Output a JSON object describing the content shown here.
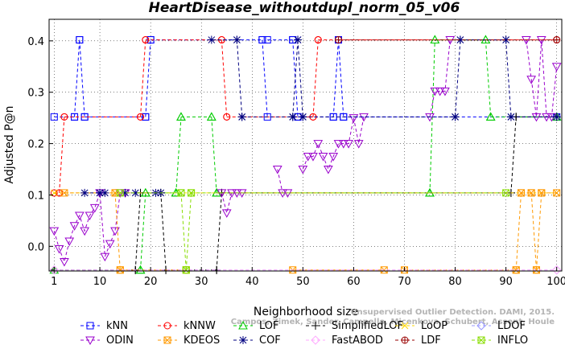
{
  "chart_data": {
    "type": "line",
    "title": "HeartDisease_withoutdupl_norm_05_v06",
    "xlabel": "Neighborhood size",
    "ylabel": "Adjusted P@n",
    "xlim": [
      0,
      101
    ],
    "ylim": [
      -0.048,
      0.442
    ],
    "xticks": [
      1,
      10,
      20,
      30,
      40,
      50,
      60,
      70,
      80,
      90,
      100
    ],
    "yticks": [
      0.0,
      0.1,
      0.2,
      0.3,
      0.4
    ],
    "ytick_labels": [
      "0.0",
      "0.1",
      "0.2",
      "0.3",
      "0.4"
    ],
    "grid": true,
    "legend_position": "bottom",
    "credit": [
      "Unsupervised Outlier Detection. DAMI, 2015.",
      "Campos, Zimek, Sander, Campello, Micenkova, Schubert, Assent, Houle"
    ],
    "series": [
      {
        "name": "kNN",
        "color": "#0000ff",
        "marker": "square",
        "segments": [
          [
            [
              1,
              0.252
            ],
            [
              5,
              0.252
            ]
          ],
          [
            [
              5,
              0.252
            ],
            [
              6,
              0.402
            ]
          ],
          [
            [
              6,
              0.402
            ],
            [
              7,
              0.252
            ]
          ],
          [
            [
              7,
              0.252
            ],
            [
              19,
              0.252
            ]
          ],
          [
            [
              19,
              0.252
            ],
            [
              20,
              0.402
            ]
          ],
          [
            [
              20,
              0.402
            ],
            [
              42,
              0.402
            ]
          ],
          [
            [
              42,
              0.402
            ],
            [
              43,
              0.252
            ]
          ],
          [
            [
              43,
              0.402
            ],
            [
              48,
              0.402
            ]
          ],
          [
            [
              48,
              0.402
            ],
            [
              49,
              0.252
            ]
          ],
          [
            [
              49,
              0.252
            ],
            [
              56,
              0.252
            ]
          ],
          [
            [
              56,
              0.252
            ],
            [
              57,
              0.402
            ]
          ],
          [
            [
              57,
              0.402
            ],
            [
              58,
              0.252
            ]
          ],
          [
            [
              58,
              0.252
            ],
            [
              100,
              0.252
            ]
          ]
        ]
      },
      {
        "name": "kNNW",
        "color": "#ff0000",
        "marker": "circle",
        "segments": [
          [
            [
              1,
              0.104
            ],
            [
              2,
              0.104
            ]
          ],
          [
            [
              2,
              0.104
            ],
            [
              3,
              0.252
            ]
          ],
          [
            [
              3,
              0.252
            ],
            [
              18,
              0.252
            ]
          ],
          [
            [
              18,
              0.252
            ],
            [
              19,
              0.402
            ]
          ],
          [
            [
              19,
              0.402
            ],
            [
              34,
              0.402
            ]
          ],
          [
            [
              34,
              0.402
            ],
            [
              35,
              0.252
            ]
          ],
          [
            [
              35,
              0.252
            ],
            [
              52,
              0.252
            ]
          ],
          [
            [
              52,
              0.252
            ],
            [
              53,
              0.402
            ]
          ],
          [
            [
              53,
              0.402
            ],
            [
              100,
              0.402
            ]
          ]
        ]
      },
      {
        "name": "LOF",
        "color": "#00cc00",
        "marker": "triangle-up",
        "segments": [
          [
            [
              1,
              -0.046
            ],
            [
              18,
              -0.046
            ]
          ],
          [
            [
              18,
              -0.046
            ],
            [
              19,
              0.104
            ]
          ],
          [
            [
              19,
              0.104
            ],
            [
              25,
              0.104
            ]
          ],
          [
            [
              25,
              0.104
            ],
            [
              26,
              0.252
            ]
          ],
          [
            [
              26,
              0.252
            ],
            [
              32,
              0.252
            ]
          ],
          [
            [
              32,
              0.252
            ],
            [
              33,
              0.104
            ]
          ],
          [
            [
              33,
              0.104
            ],
            [
              75,
              0.104
            ]
          ],
          [
            [
              75,
              0.104
            ],
            [
              76,
              0.402
            ]
          ],
          [
            [
              76,
              0.402
            ],
            [
              86,
              0.402
            ]
          ],
          [
            [
              86,
              0.402
            ],
            [
              87,
              0.252
            ]
          ],
          [
            [
              87,
              0.252
            ],
            [
              100,
              0.252
            ]
          ]
        ]
      },
      {
        "name": "SimplifiedLOF",
        "color": "#000000",
        "marker": "plus",
        "segments": [
          [
            [
              1,
              -0.046
            ],
            [
              17,
              -0.046
            ]
          ],
          [
            [
              17,
              -0.046
            ],
            [
              18,
              0.104
            ]
          ],
          [
            [
              18,
              0.104
            ],
            [
              22,
              0.104
            ]
          ],
          [
            [
              22,
              0.104
            ],
            [
              23,
              -0.046
            ]
          ],
          [
            [
              23,
              -0.046
            ],
            [
              33,
              -0.046
            ]
          ],
          [
            [
              33,
              -0.046
            ],
            [
              34,
              0.104
            ]
          ],
          [
            [
              34,
              0.104
            ],
            [
              91,
              0.104
            ]
          ],
          [
            [
              91,
              0.104
            ],
            [
              92,
              0.252
            ]
          ],
          [
            [
              92,
              0.252
            ],
            [
              100,
              0.252
            ]
          ]
        ]
      },
      {
        "name": "LoOP",
        "color": "#ffd700",
        "marker": "x",
        "segments": [
          [
            [
              1,
              0.104
            ],
            [
              100,
              0.104
            ]
          ]
        ]
      },
      {
        "name": "LDOF",
        "color": "#9999ff",
        "marker": "diamond",
        "segments": [
          [
            [
              1,
              -0.046
            ],
            [
              100,
              -0.046
            ]
          ]
        ]
      },
      {
        "name": "ODIN",
        "color": "#9900cc",
        "marker": "triangle-down",
        "segments": [
          [
            [
              1,
              0.03
            ],
            [
              2,
              -0.005
            ],
            [
              3,
              -0.03
            ],
            [
              4,
              0.01
            ],
            [
              5,
              0.04
            ],
            [
              6,
              0.06
            ],
            [
              7,
              0.03
            ],
            [
              8,
              0.06
            ],
            [
              9,
              0.075
            ],
            [
              10,
              0.104
            ],
            [
              11,
              -0.02
            ],
            [
              12,
              0.005
            ],
            [
              13,
              0.03
            ],
            [
              14,
              0.104
            ],
            [
              15,
              0.104
            ]
          ],
          [
            [
              34,
              0.104
            ],
            [
              35,
              0.065
            ],
            [
              36,
              0.104
            ],
            [
              37,
              0.104
            ],
            [
              38,
              0.104
            ]
          ],
          [
            [
              45,
              0.15
            ],
            [
              46,
              0.104
            ],
            [
              47,
              0.104
            ]
          ],
          [
            [
              50,
              0.15
            ],
            [
              51,
              0.175
            ],
            [
              52,
              0.175
            ],
            [
              53,
              0.2
            ],
            [
              54,
              0.175
            ],
            [
              55,
              0.15
            ],
            [
              56,
              0.175
            ],
            [
              57,
              0.2
            ],
            [
              58,
              0.2
            ],
            [
              59,
              0.2
            ],
            [
              60,
              0.25
            ],
            [
              61,
              0.2
            ],
            [
              62,
              0.252
            ]
          ],
          [
            [
              75,
              0.252
            ],
            [
              76,
              0.302
            ],
            [
              77,
              0.302
            ],
            [
              78,
              0.302
            ],
            [
              79,
              0.402
            ]
          ],
          [
            [
              94,
              0.402
            ],
            [
              95,
              0.325
            ],
            [
              96,
              0.252
            ],
            [
              97,
              0.402
            ],
            [
              98,
              0.252
            ],
            [
              99,
              0.252
            ],
            [
              100,
              0.35
            ]
          ]
        ]
      },
      {
        "name": "KDEOS",
        "color": "#ff9900",
        "marker": "square-x",
        "segments": [
          [
            [
              3,
              0.104
            ],
            [
              13,
              0.104
            ]
          ],
          [
            [
              13,
              0.104
            ],
            [
              14,
              -0.046
            ]
          ],
          [
            [
              14,
              -0.046
            ],
            [
              27,
              -0.046
            ]
          ],
          [
            [
              48,
              -0.046
            ],
            [
              66,
              -0.046
            ]
          ],
          [
            [
              70,
              -0.046
            ],
            [
              92,
              -0.046
            ]
          ],
          [
            [
              92,
              -0.046
            ],
            [
              93,
              0.104
            ]
          ],
          [
            [
              93,
              0.104
            ],
            [
              95,
              0.104
            ]
          ],
          [
            [
              95,
              0.104
            ],
            [
              96,
              -0.046
            ]
          ],
          [
            [
              96,
              -0.046
            ],
            [
              97,
              0.104
            ]
          ],
          [
            [
              97,
              0.104
            ],
            [
              100,
              0.104
            ]
          ]
        ]
      },
      {
        "name": "COF",
        "color": "#000080",
        "marker": "asterisk",
        "segments": [
          [
            [
              7,
              0.104
            ],
            [
              10,
              0.104
            ]
          ],
          [
            [
              10,
              0.104
            ],
            [
              11,
              0.104
            ]
          ],
          [
            [
              15,
              0.104
            ],
            [
              17,
              0.104
            ]
          ],
          [
            [
              21,
              0.104
            ],
            [
              22,
              0.104
            ]
          ],
          [
            [
              32,
              0.402
            ],
            [
              37,
              0.402
            ]
          ],
          [
            [
              37,
              0.402
            ],
            [
              38,
              0.252
            ]
          ],
          [
            [
              38,
              0.252
            ],
            [
              48,
              0.252
            ]
          ],
          [
            [
              48,
              0.252
            ],
            [
              49,
              0.402
            ]
          ],
          [
            [
              49,
              0.402
            ],
            [
              50,
              0.252
            ]
          ],
          [
            [
              50,
              0.252
            ],
            [
              80,
              0.252
            ]
          ],
          [
            [
              80,
              0.252
            ],
            [
              81,
              0.402
            ]
          ],
          [
            [
              81,
              0.402
            ],
            [
              90,
              0.402
            ]
          ],
          [
            [
              90,
              0.402
            ],
            [
              91,
              0.252
            ]
          ],
          [
            [
              91,
              0.252
            ],
            [
              100,
              0.252
            ]
          ]
        ]
      },
      {
        "name": "FastABOD",
        "color": "#ffaaff",
        "marker": "diamond",
        "segments": [
          [
            [
              1,
              -0.046
            ],
            [
              100,
              -0.046
            ]
          ]
        ]
      },
      {
        "name": "LDF",
        "color": "#990000",
        "marker": "circle-plus",
        "segments": [
          [
            [
              57,
              0.402
            ],
            [
              100,
              0.402
            ]
          ]
        ]
      },
      {
        "name": "INFLO",
        "color": "#88dd00",
        "marker": "square-x",
        "segments": [
          [
            [
              14,
              0.104
            ],
            [
              26,
              0.104
            ]
          ],
          [
            [
              26,
              0.104
            ],
            [
              27,
              -0.046
            ]
          ],
          [
            [
              27,
              -0.046
            ],
            [
              28,
              0.104
            ]
          ],
          [
            [
              28,
              0.104
            ],
            [
              90,
              0.104
            ]
          ]
        ]
      }
    ]
  }
}
